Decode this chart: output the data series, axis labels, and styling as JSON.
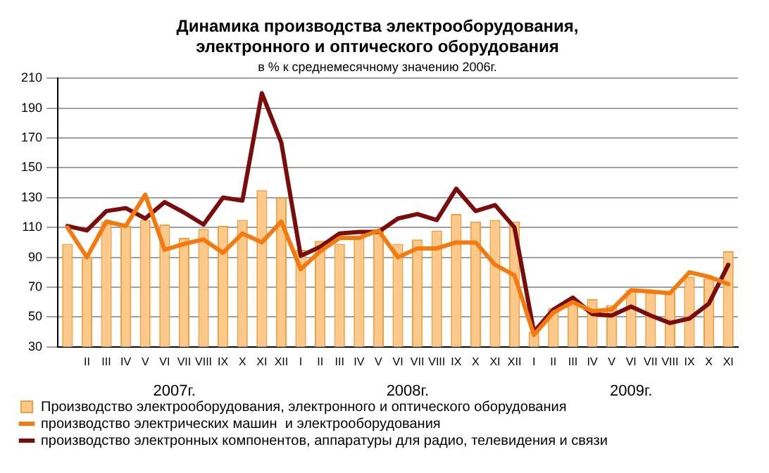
{
  "chart_data": {
    "type": "bar",
    "title": "Динамика производства электрооборудования, электронного и оптического оборудования",
    "subtitle": "в % к среднемесячному значению 2006г.",
    "categories": [
      null,
      "II",
      "III",
      "IV",
      "V",
      "VI",
      "VII",
      "VIII",
      "IX",
      "X",
      "XI",
      "XII",
      "I",
      "II",
      "III",
      "IV",
      "V",
      "VI",
      "VII",
      "VIII",
      "IX",
      "X",
      "XI",
      "XII",
      "I",
      "II",
      "III",
      "IV",
      "V",
      "VI",
      "VII",
      "VIII",
      "IX",
      "X",
      "XI"
    ],
    "series": [
      {
        "name": "Производство электрооборудования, электронного и оптического оборудования",
        "color": "#fcc98a",
        "values": [
          99,
          90,
          114,
          111,
          115,
          112,
          103,
          109,
          111,
          115,
          135,
          130,
          95,
          101,
          99,
          103,
          108,
          99,
          102,
          108,
          119,
          114,
          115,
          114,
          40,
          56,
          60,
          62,
          58,
          68,
          67,
          67,
          77,
          76,
          94
        ]
      },
      {
        "name": "производство электрических машин  и электрооборудования",
        "type": "line",
        "color": "#f47a10",
        "values": [
          110,
          90,
          114,
          111,
          132,
          95,
          99,
          102,
          93,
          106,
          100,
          114,
          82,
          94,
          103,
          103,
          108,
          90,
          96,
          96,
          100,
          100,
          85,
          78,
          38,
          53,
          60,
          54,
          55,
          68,
          67,
          66,
          80,
          77,
          72
        ]
      },
      {
        "name": "производство электронных компонентов, аппаратуры для радио, телевидения и связи",
        "type": "line",
        "color": "#7a0c0c",
        "values": [
          111,
          108,
          121,
          123,
          116,
          127,
          120,
          112,
          130,
          128,
          200,
          167,
          91,
          97,
          106,
          107,
          107,
          116,
          119,
          115,
          136,
          121,
          125,
          110,
          40,
          55,
          63,
          52,
          51,
          57,
          51,
          46,
          49,
          59,
          85
        ]
      }
    ],
    "annotations": [
      "2007г.",
      "2008г.",
      "2009г."
    ],
    "ylim": [
      30,
      210
    ],
    "yticks": [
      30,
      50,
      70,
      90,
      110,
      130,
      150,
      170,
      190,
      210
    ],
    "grid": "y",
    "legend": "bottom"
  }
}
